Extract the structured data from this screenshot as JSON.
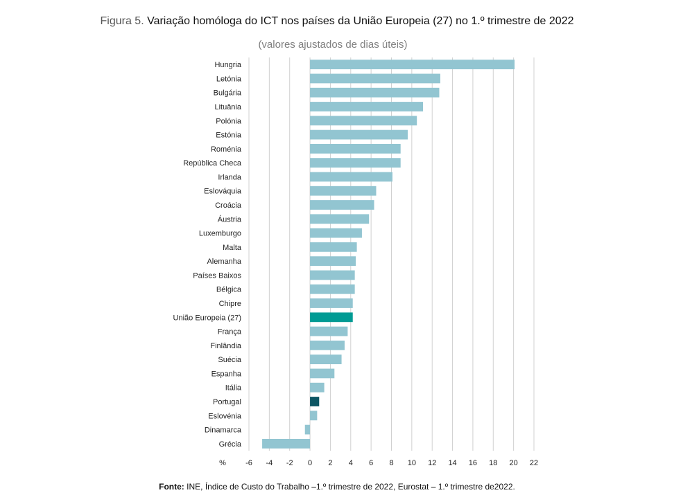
{
  "header": {
    "figure_label": "Figura 5.",
    "title": "Variação homóloga do ICT nos países da União Europeia (27) no 1.º trimestre de 2022",
    "subtitle": "(valores ajustados de dias úteis)"
  },
  "footer": {
    "source_label": "Fonte:",
    "source_text": "INE, Índice de Custo do Trabalho –1.º trimestre de 2022, Eurostat – 1.º trimestre de2022."
  },
  "colors": {
    "bar_default": "#92c5d1",
    "bar_eu": "#009b94",
    "bar_portugal": "#0c5563",
    "grid": "#d0d0d0"
  },
  "chart_data": {
    "type": "bar",
    "orientation": "horizontal",
    "title": "Variação homóloga do ICT nos países da União Europeia (27) no 1.º trimestre de 2022",
    "subtitle": "(valores ajustados de dias úteis)",
    "xlabel": "%",
    "ylabel": "",
    "xlim": [
      -6,
      22
    ],
    "xticks": [
      -6,
      -4,
      -2,
      0,
      2,
      4,
      6,
      8,
      10,
      12,
      14,
      16,
      18,
      20,
      22
    ],
    "grid": true,
    "categories": [
      "Hungria",
      "Letónia",
      "Bulgária",
      "Lituânia",
      "Polónia",
      "Estónia",
      "Roménia",
      "República Checa",
      "Irlanda",
      "Eslováquia",
      "Croácia",
      "Áustria",
      "Luxemburgo",
      "Malta",
      "Alemanha",
      "Países Baixos",
      "Bélgica",
      "Chipre",
      "União Europeia (27)",
      "França",
      "Finlândia",
      "Suécia",
      "Espanha",
      "Itália",
      "Portugal",
      "Eslovénia",
      "Dinamarca",
      "Grécia"
    ],
    "values": [
      20.1,
      12.8,
      12.7,
      11.1,
      10.5,
      9.6,
      8.9,
      8.9,
      8.1,
      6.5,
      6.3,
      5.8,
      5.1,
      4.6,
      4.5,
      4.4,
      4.4,
      4.2,
      4.2,
      3.7,
      3.4,
      3.1,
      2.4,
      1.4,
      0.9,
      0.7,
      -0.5,
      -4.7
    ],
    "highlights": {
      "União Europeia (27)": "eu",
      "Portugal": "portugal"
    }
  }
}
